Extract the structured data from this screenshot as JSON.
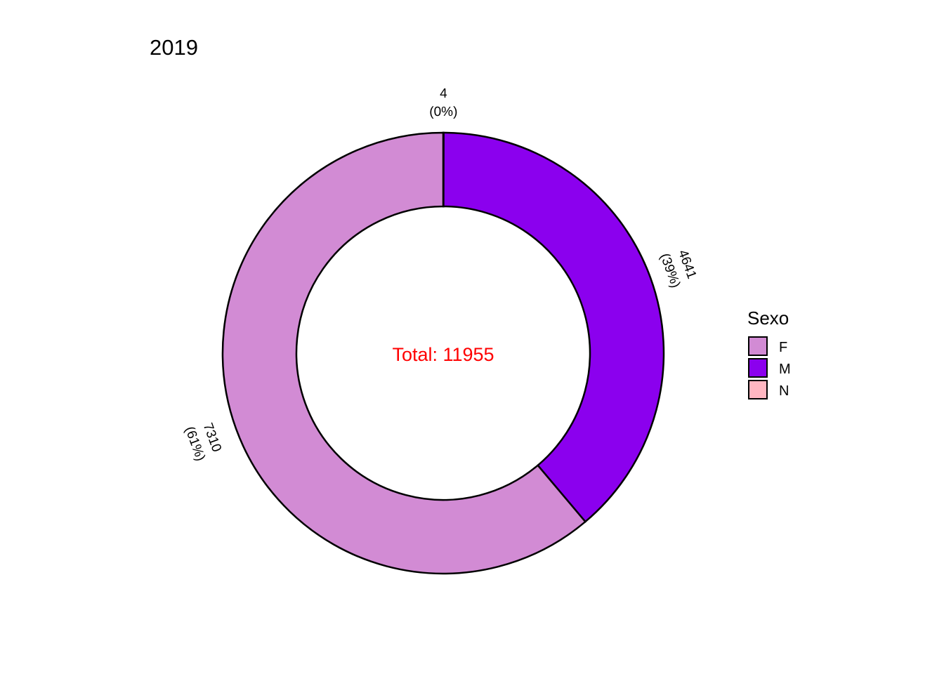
{
  "chart_data": {
    "type": "pie",
    "subtype": "donut",
    "title": "2019",
    "center_label": "Total: 11955",
    "center_label_color": "#ff0000",
    "total": 11955,
    "slices": [
      {
        "name": "N",
        "value": 4,
        "percent_label": "(0%)",
        "value_label": "4",
        "color": "#ffb6c1"
      },
      {
        "name": "M",
        "value": 4641,
        "percent_label": "(39%)",
        "value_label": "4641",
        "color": "#8b00ee"
      },
      {
        "name": "F",
        "value": 7310,
        "percent_label": "(61%)",
        "value_label": "7310",
        "color": "#d28bd4"
      }
    ],
    "legend": {
      "title": "Sexo",
      "position": "right",
      "items": [
        {
          "label": "F",
          "color": "#d28bd4"
        },
        {
          "label": "M",
          "color": "#8b00ee"
        },
        {
          "label": "N",
          "color": "#ffb6c1"
        }
      ]
    },
    "stroke_color": "#000000"
  }
}
